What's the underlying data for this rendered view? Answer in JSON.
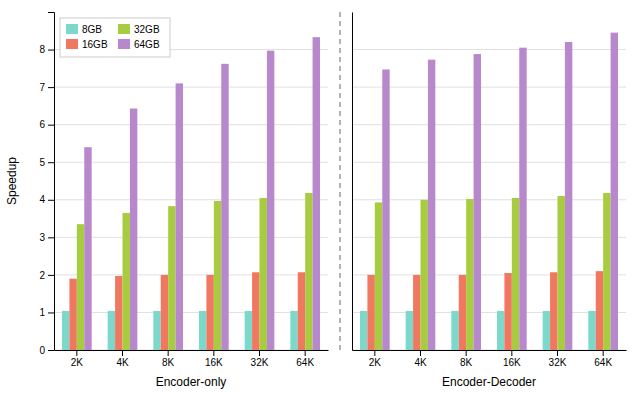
{
  "chart_data": [
    {
      "type": "bar",
      "xlabel": "Encoder-only",
      "ylabel": "Speedup",
      "categories": [
        "2K",
        "4K",
        "8K",
        "16K",
        "32K",
        "64K"
      ],
      "series": [
        {
          "name": "8GB",
          "color": "#7dd8cc",
          "values": [
            1.04,
            1.04,
            1.04,
            1.04,
            1.04,
            1.04
          ]
        },
        {
          "name": "16GB",
          "color": "#f07860",
          "values": [
            1.9,
            1.97,
            2.0,
            2.0,
            2.07,
            2.07
          ]
        },
        {
          "name": "32GB",
          "color": "#a8cc40",
          "values": [
            3.35,
            3.65,
            3.83,
            3.97,
            4.05,
            4.18
          ]
        },
        {
          "name": "64GB",
          "color": "#b888cc",
          "values": [
            5.4,
            6.43,
            7.1,
            7.62,
            7.97,
            8.33
          ]
        }
      ],
      "ylim": [
        0,
        9
      ],
      "yticks": [
        0,
        1,
        2,
        3,
        4,
        5,
        6,
        7,
        8
      ],
      "grid": true,
      "legend": "upper left"
    },
    {
      "type": "bar",
      "xlabel": "Encoder-Decoder",
      "categories": [
        "2K",
        "4K",
        "8K",
        "16K",
        "32K",
        "64K"
      ],
      "series": [
        {
          "name": "8GB",
          "color": "#7dd8cc",
          "values": [
            1.04,
            1.04,
            1.04,
            1.04,
            1.04,
            1.04
          ]
        },
        {
          "name": "16GB",
          "color": "#f07860",
          "values": [
            2.0,
            2.0,
            2.0,
            2.05,
            2.07,
            2.1
          ]
        },
        {
          "name": "32GB",
          "color": "#a8cc40",
          "values": [
            3.93,
            4.0,
            4.02,
            4.05,
            4.1,
            4.18
          ]
        },
        {
          "name": "64GB",
          "color": "#b888cc",
          "values": [
            7.47,
            7.73,
            7.88,
            8.05,
            8.2,
            8.45
          ]
        }
      ],
      "ylim": [
        0,
        9
      ],
      "yticks": [
        0,
        1,
        2,
        3,
        4,
        5,
        6,
        7,
        8
      ],
      "grid": true,
      "tick_labels": "x"
    }
  ]
}
